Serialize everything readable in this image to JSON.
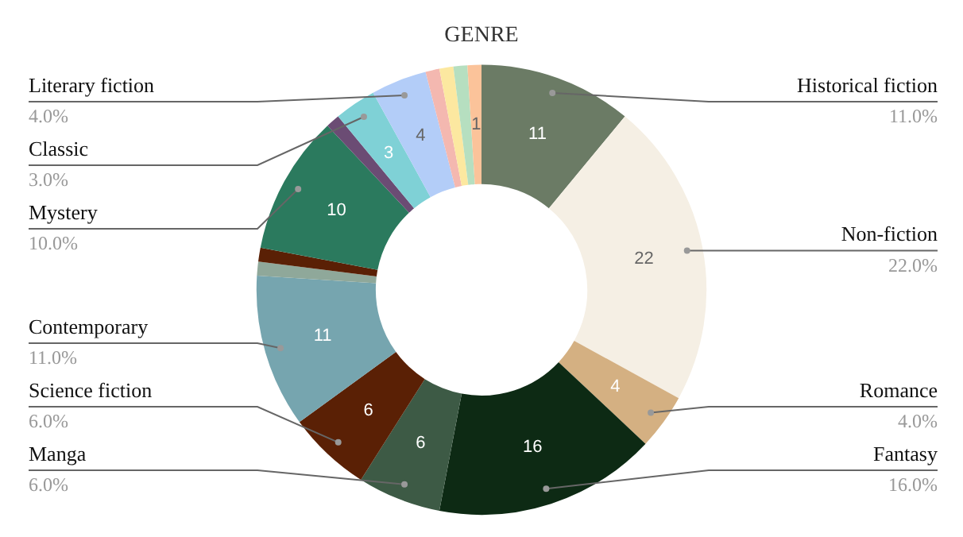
{
  "chart_data": {
    "type": "donut",
    "title": "GENRE",
    "categories": [
      "Historical fiction",
      "Non-fiction",
      "Romance",
      "Fantasy",
      "Manga",
      "Science fiction",
      "Contemporary",
      null,
      null,
      "Mystery",
      null,
      "Classic",
      "Literary fiction",
      null,
      null,
      null,
      null
    ],
    "values": [
      11,
      22,
      4,
      16,
      6,
      6,
      11,
      1,
      1,
      10,
      1,
      3,
      4,
      1,
      1,
      1,
      1
    ],
    "colors": [
      "#6b7b65",
      "#f5efe4",
      "#d4b082",
      "#0d2a14",
      "#3d5a45",
      "#5a2005",
      "#76a5af",
      "#8fa89a",
      "#5a2005",
      "#2b7a5e",
      "#6b4c74",
      "#7fd1d6",
      "#b3cdf8",
      "#f4b8b0",
      "#fce8a0",
      "#b6dfc0",
      "#fbc39a"
    ],
    "value_labels": [
      "11",
      "22",
      "4",
      "16",
      "6",
      "6",
      "11",
      null,
      null,
      "10",
      null,
      "3",
      "4",
      null,
      null,
      null,
      "1"
    ],
    "annotations": [
      "11.0%",
      "22.0%",
      "4.0%",
      "16.0%",
      "6.0%",
      "6.0%",
      "11.0%",
      "10.0%",
      "3.0%",
      "4.0%"
    ],
    "legend": false
  }
}
